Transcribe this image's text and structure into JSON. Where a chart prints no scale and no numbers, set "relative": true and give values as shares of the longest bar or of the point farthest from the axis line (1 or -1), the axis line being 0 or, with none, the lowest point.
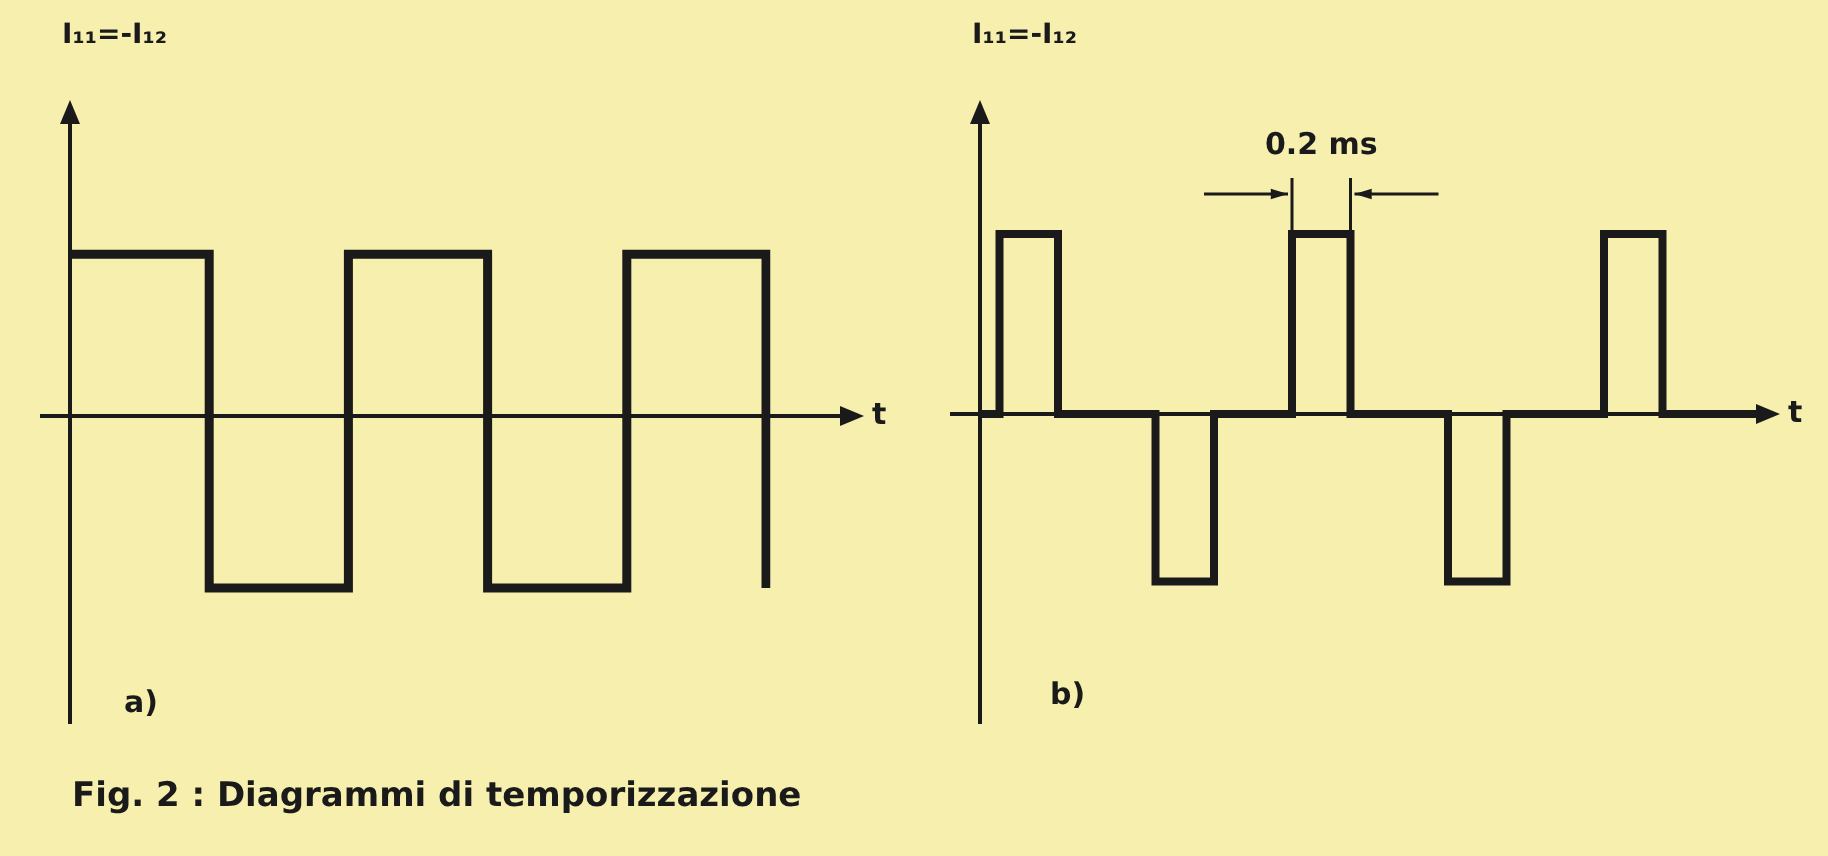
{
  "chart_data": [
    {
      "type": "step",
      "relative": true,
      "ylabel": "I₁₁=-I₁₂",
      "xlabel": "t",
      "annotations": [
        "a)",
        "Fig. 2 : Diagrammi di temporizzazione"
      ],
      "categories": [
        null,
        null,
        null,
        null,
        null,
        null
      ],
      "series": [
        {
          "color": "#1a1a1a",
          "values": [
            0.94,
            -1,
            0.94,
            -1,
            0.94,
            -1
          ]
        }
      ]
    },
    {
      "type": "step",
      "relative": true,
      "ylabel": "I₁₁=-I₁₂",
      "xlabel": "t",
      "annotations": [
        "b)",
        "0.2 ms"
      ],
      "categories": [
        null,
        null,
        null,
        null,
        null,
        null,
        null,
        null,
        null,
        null,
        null,
        null,
        null,
        null,
        null,
        null,
        null,
        null,
        null,
        null,
        null,
        null,
        null,
        null,
        null,
        null,
        null,
        null,
        null,
        null,
        null,
        null,
        null,
        null,
        null,
        null,
        null,
        null,
        null,
        null,
        null
      ],
      "series": [
        {
          "color": "#1a1a1a",
          "values": [
            0,
            1,
            1,
            1,
            0,
            0,
            0,
            0,
            0,
            -0.93,
            -0.93,
            -0.93,
            0,
            0,
            0,
            0,
            1,
            1,
            1,
            0,
            0,
            0,
            0,
            0,
            -0.93,
            -0.93,
            -0.93,
            0,
            0,
            0,
            0,
            0,
            1,
            1,
            1,
            0,
            0,
            0,
            0,
            0,
            0
          ]
        }
      ]
    }
  ]
}
